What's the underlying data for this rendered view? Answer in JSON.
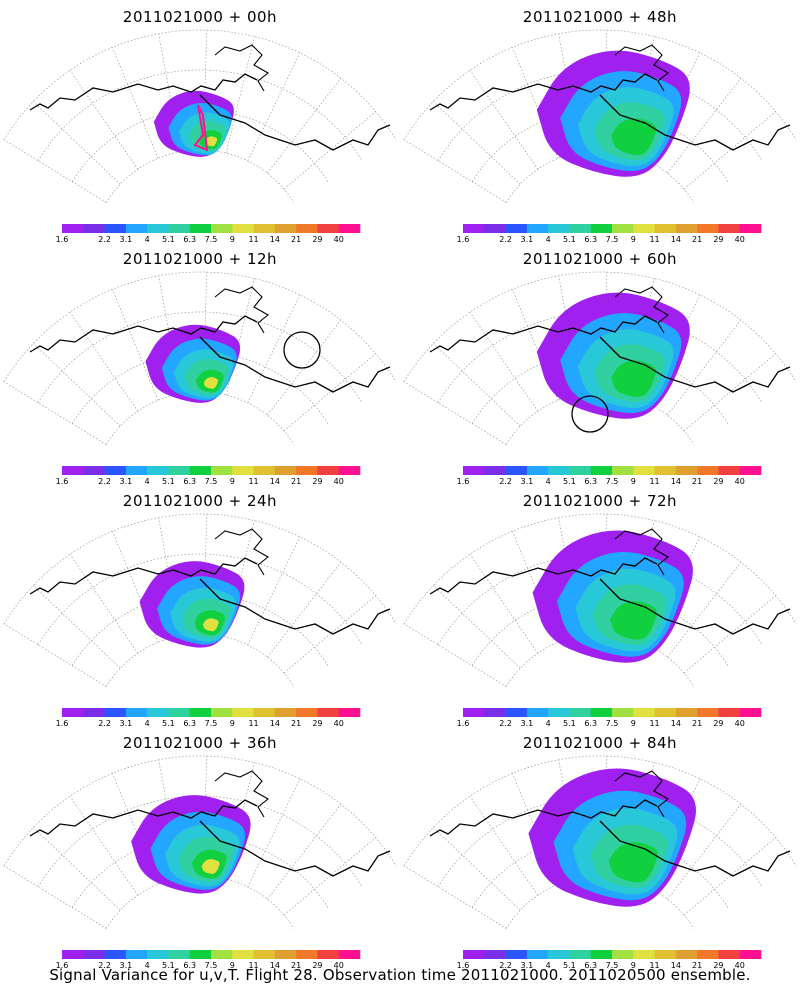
{
  "colorbar": {
    "colors": [
      "#a020f0",
      "#7a2ee8",
      "#2c55ff",
      "#22a6ff",
      "#28c8d8",
      "#30d0a0",
      "#10d040",
      "#a0e040",
      "#e0e040",
      "#e0c030",
      "#e0a030",
      "#f07828",
      "#f04040",
      "#ff1090"
    ],
    "labels": [
      "1.6",
      "2.2",
      "3.1",
      "4",
      "5.1",
      "6.3",
      "7.5",
      "9",
      "11",
      "14",
      "21",
      "29",
      "40"
    ]
  },
  "panels": [
    {
      "title": "2011021000 + 00h",
      "col": 0,
      "row": 0,
      "spread": 0.55,
      "peak": 3,
      "track": true,
      "circle": null
    },
    {
      "title": "2011021000 + 48h",
      "col": 1,
      "row": 0,
      "spread": 1.05,
      "peak": 2,
      "track": false,
      "circle": null
    },
    {
      "title": "2011021000 + 12h",
      "col": 0,
      "row": 1,
      "spread": 0.65,
      "peak": 3,
      "track": false,
      "circle": "east"
    },
    {
      "title": "2011021000 + 60h",
      "col": 1,
      "row": 1,
      "spread": 1.05,
      "peak": 2,
      "track": false,
      "circle": "south"
    },
    {
      "title": "2011021000 + 24h",
      "col": 0,
      "row": 2,
      "spread": 0.72,
      "peak": 3,
      "track": false,
      "circle": null
    },
    {
      "title": "2011021000 + 72h",
      "col": 1,
      "row": 2,
      "spread": 1.1,
      "peak": 2,
      "track": false,
      "circle": null
    },
    {
      "title": "2011021000 + 36h",
      "col": 0,
      "row": 3,
      "spread": 0.82,
      "peak": 3,
      "track": false,
      "circle": null
    },
    {
      "title": "2011021000 + 84h",
      "col": 1,
      "row": 3,
      "spread": 1.15,
      "peak": 2,
      "track": false,
      "circle": null
    }
  ],
  "caption": "Signal Variance for u,v,T. Flight 28. Observation time 2011021000. 2011020500 ensemble."
}
